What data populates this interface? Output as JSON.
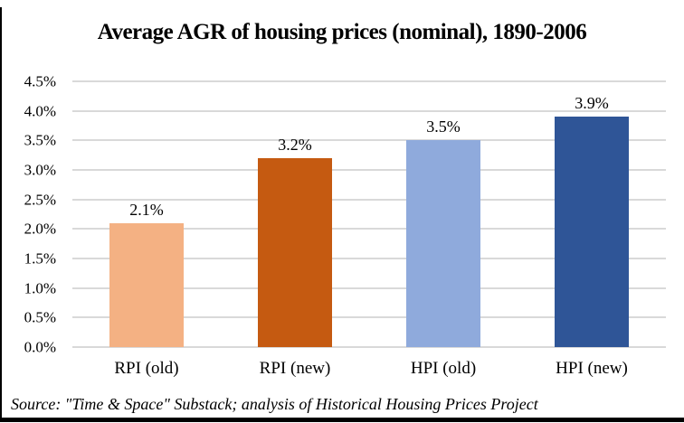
{
  "chart_data": {
    "type": "bar",
    "title": "Average AGR of housing prices (nominal), 1890-2006",
    "categories": [
      "RPI (old)",
      "RPI (new)",
      "HPI (old)",
      "HPI (new)"
    ],
    "values": [
      2.1,
      3.2,
      3.5,
      3.9
    ],
    "data_labels": [
      "2.1%",
      "3.2%",
      "3.5%",
      "3.9%"
    ],
    "bar_colors": [
      "#F4B183",
      "#C55A11",
      "#8FAADC",
      "#2F5597"
    ],
    "xlabel": "",
    "ylabel": "",
    "ylim": [
      0,
      4.5
    ],
    "y_ticks": [
      "4.5%",
      "4.0%",
      "3.5%",
      "3.0%",
      "2.5%",
      "2.0%",
      "1.5%",
      "1.0%",
      "0.5%",
      "0.0%"
    ],
    "grid": true,
    "gridline_color": "#D9D9D9",
    "legend_position": "none"
  },
  "source_note": "Source: \"Time & Space\" Substack; analysis of Historical Housing Prices Project",
  "frame": {
    "border_color": "#000000",
    "background_color": "#FFFFFF"
  }
}
